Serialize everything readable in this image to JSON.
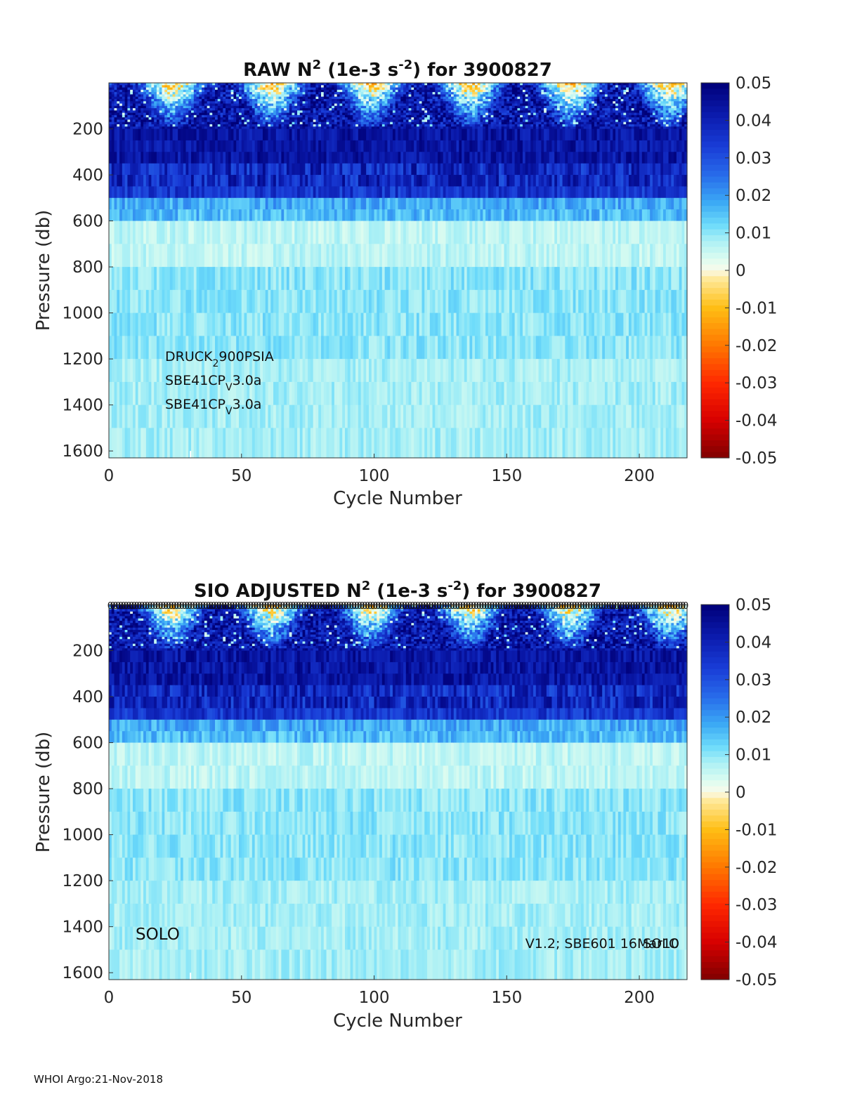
{
  "footer": "WHOI Argo:21-Nov-2018",
  "colorbar": {
    "ticks": [
      "0.05",
      "0.04",
      "0.03",
      "0.02",
      "0.01",
      "0",
      "-0.01",
      "-0.02",
      "-0.03",
      "-0.04",
      "-0.05"
    ],
    "range": [
      -0.05,
      0.05
    ],
    "colormap": "blue-cyan-white-yellow-red"
  },
  "chart_data": [
    {
      "type": "heatmap",
      "title": {
        "pre": "RAW N",
        "sup1": "2",
        "mid": " (1e-3 s",
        "sup2": "-2",
        "post": ") for 3900827"
      },
      "xlabel": "Cycle Number",
      "ylabel": "Pressure (db)",
      "xlim": [
        0,
        218
      ],
      "ylim": [
        0,
        1630
      ],
      "y_reversed": true,
      "xticks": [
        "0",
        "50",
        "100",
        "150",
        "200"
      ],
      "yticks": [
        "200",
        "400",
        "600",
        "800",
        "1000",
        "1200",
        "1400",
        "1600"
      ],
      "clim": [
        -0.05,
        0.05
      ],
      "sensor_lines": [
        {
          "base": "DRUCK",
          "sub": "2",
          "rest": "900PSIA"
        },
        {
          "base": "SBE41CP",
          "sub": "V",
          "rest": "3.0a"
        },
        {
          "base": "SBE41CP",
          "sub": "V",
          "rest": "3.0a"
        }
      ],
      "layers": [
        {
          "p_range": [
            0,
            200
          ],
          "description": "mixed",
          "typical_value": 0.03
        },
        {
          "p_range": [
            200,
            450
          ],
          "typical_value": 0.045
        },
        {
          "p_range": [
            450,
            550
          ],
          "typical_value": 0.038
        },
        {
          "p_range": [
            550,
            600
          ],
          "typical_value": 0.02
        },
        {
          "p_range": [
            600,
            1630
          ],
          "typical_value": 0.011
        }
      ]
    },
    {
      "type": "heatmap",
      "title": {
        "pre": "SIO  ADJUSTED N",
        "sup1": "2",
        "mid": " (1e-3 s",
        "sup2": "-2",
        "post": ") for 3900827"
      },
      "xlabel": "Cycle Number",
      "ylabel": "Pressure (db)",
      "xlim": [
        0,
        218
      ],
      "ylim": [
        0,
        1630
      ],
      "y_reversed": true,
      "xticks": [
        "0",
        "50",
        "100",
        "150",
        "200"
      ],
      "yticks": [
        "200",
        "400",
        "600",
        "800",
        "1000",
        "1200",
        "1400",
        "1600"
      ],
      "clim": [
        -0.05,
        0.05
      ],
      "left_note": "SOLO",
      "right_note_a": "V1.2; SBE601 16Mar10",
      "right_note_b": "SOLO",
      "qc_flag_row": "0"
    }
  ]
}
